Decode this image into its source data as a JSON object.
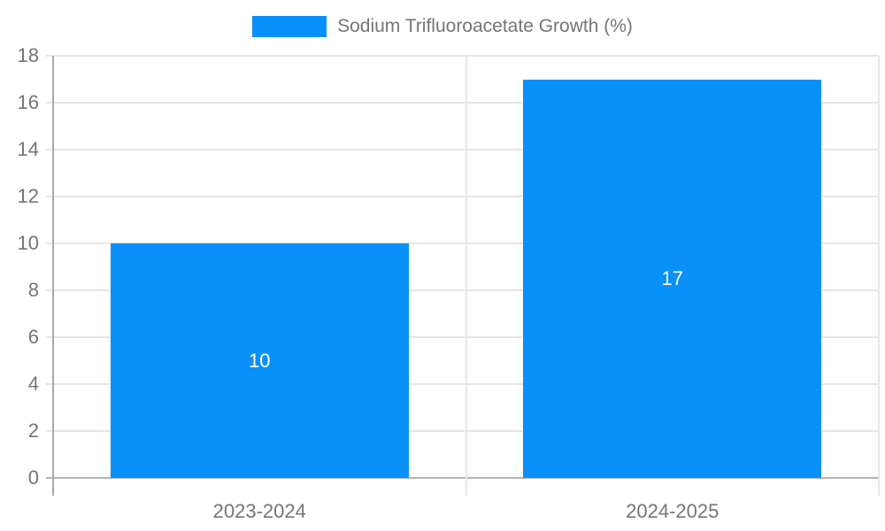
{
  "legend": {
    "label": "Sodium Trifluoroacetate Growth (%)"
  },
  "colors": {
    "bar": "#0990f9",
    "legend_text": "#757575",
    "axis_label": "#757575",
    "bar_label": "#ffffff",
    "gridline": "#e6e6e6",
    "axis_line": "#aaaaaa",
    "zero_line": "#b3b3b3",
    "background": "#ffffff"
  },
  "chart_data": {
    "type": "bar",
    "title": "",
    "xlabel": "",
    "ylabel": "",
    "categories": [
      "2023-2024",
      "2024-2025"
    ],
    "series": [
      {
        "name": "Sodium Trifluoroacetate Growth (%)",
        "values": [
          10,
          17
        ],
        "data_labels": [
          "10",
          "17"
        ]
      }
    ],
    "ylim": [
      0,
      18
    ],
    "ytick_step": 2,
    "ytick_labels": [
      "0",
      "2",
      "4",
      "6",
      "8",
      "10",
      "12",
      "14",
      "16",
      "18"
    ],
    "grid": true,
    "legend_position": "top-center",
    "bar_label_position": "inside-center"
  }
}
